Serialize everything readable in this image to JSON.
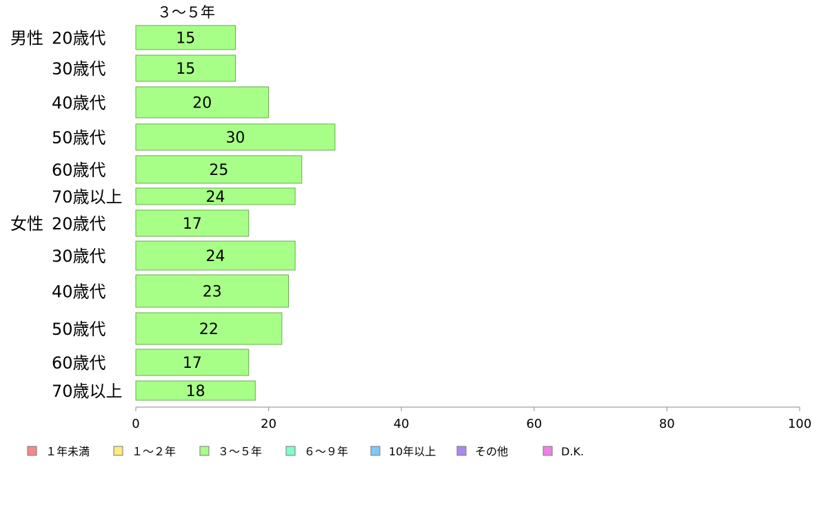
{
  "chart_data": {
    "type": "bar",
    "orientation": "horizontal",
    "series_header": "３～５年",
    "groups": [
      {
        "label": "男性",
        "categories": [
          "20歳代",
          "30歳代",
          "40歳代",
          "50歳代",
          "60歳代",
          "70歳以上"
        ],
        "values": [
          15,
          15,
          20,
          30,
          25,
          24
        ]
      },
      {
        "label": "女性",
        "categories": [
          "20歳代",
          "30歳代",
          "40歳代",
          "50歳代",
          "60歳代",
          "70歳以上"
        ],
        "values": [
          17,
          24,
          23,
          22,
          17,
          18
        ]
      }
    ],
    "xlim": [
      0,
      100
    ],
    "xticks": [
      0,
      20,
      40,
      60,
      80,
      100
    ],
    "grid": false,
    "bar_color": "#a8ff88",
    "bar_border_color": "#6aa84f",
    "legend_position": "bottom",
    "legend": [
      {
        "label": "１年未満",
        "color": "#f4898a"
      },
      {
        "label": "１～２年",
        "color": "#ffea80"
      },
      {
        "label": "３～５年",
        "color": "#a8ff88"
      },
      {
        "label": "６～９年",
        "color": "#80ffcc"
      },
      {
        "label": "10年以上",
        "color": "#80c8f8"
      },
      {
        "label": "その他",
        "color": "#aa88f0"
      },
      {
        "label": "D.K.",
        "color": "#f080e8"
      }
    ]
  }
}
